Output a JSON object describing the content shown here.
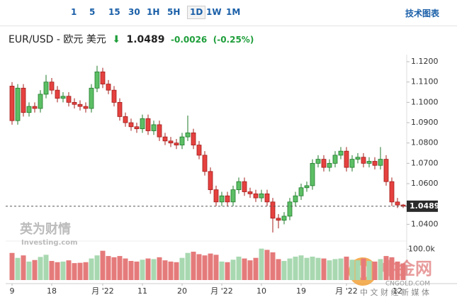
{
  "toolbar": [
    "1",
    "5",
    "15",
    "30",
    "1H",
    "5H",
    "1D",
    "1W",
    "1M"
  ],
  "toolbar_right": "技术图表",
  "header": {
    "symbol": "EUR/USD - 欧元 美元",
    "price": "1.0489",
    "change": "-0.0026",
    "change_pct": "(-0.25%)"
  },
  "watermarks": {
    "brand": "英为财情",
    "brand_sub": "Investing.com",
    "site": "中金网",
    "site_url": "CNGOLD.COM",
    "site_tag": "中 文 财 经 新 媒 体"
  },
  "chart_data": {
    "type": "candlestick",
    "categories": [
      "9",
      null,
      null,
      null,
      null,
      null,
      null,
      "18",
      null,
      null,
      null,
      null,
      null,
      null,
      null,
      null,
      "月 '22",
      null,
      null,
      null,
      null,
      null,
      null,
      "11",
      null,
      null,
      null,
      null,
      null,
      null,
      "20",
      null,
      null,
      null,
      null,
      null,
      null,
      "月 '22",
      null,
      null,
      null,
      null,
      null,
      null,
      "10",
      null,
      null,
      null,
      null,
      null,
      null,
      "19",
      null,
      null,
      null,
      null,
      null,
      null,
      null,
      "月 '22",
      null,
      null,
      null,
      null,
      null,
      null,
      null,
      null,
      "12",
      null
    ],
    "open": [
      1.108,
      1.091,
      1.107,
      1.095,
      1.098,
      1.097,
      1.104,
      1.11,
      1.106,
      1.102,
      1.103,
      1.1,
      1.099,
      1.098,
      1.097,
      1.107,
      1.115,
      1.109,
      1.106,
      1.1,
      1.093,
      1.09,
      1.088,
      1.087,
      1.092,
      1.086,
      1.089,
      1.083,
      1.081,
      1.08,
      1.079,
      1.083,
      1.085,
      1.079,
      1.074,
      1.066,
      1.057,
      1.051,
      1.054,
      1.051,
      1.057,
      1.061,
      1.056,
      1.055,
      1.053,
      1.055,
      1.051,
      1.043,
      1.042,
      1.044,
      1.051,
      1.054,
      1.058,
      1.059,
      1.07,
      1.072,
      1.068,
      1.07,
      1.074,
      1.076,
      1.068,
      1.072,
      1.073,
      1.07,
      1.071,
      1.069,
      1.072,
      1.061,
      1.051,
      1.0495
    ],
    "close": [
      1.091,
      1.107,
      1.095,
      1.098,
      1.097,
      1.104,
      1.11,
      1.106,
      1.102,
      1.103,
      1.1,
      1.099,
      1.098,
      1.097,
      1.107,
      1.115,
      1.109,
      1.106,
      1.1,
      1.093,
      1.09,
      1.088,
      1.087,
      1.092,
      1.086,
      1.089,
      1.083,
      1.081,
      1.08,
      1.079,
      1.083,
      1.085,
      1.079,
      1.074,
      1.066,
      1.057,
      1.051,
      1.054,
      1.051,
      1.057,
      1.061,
      1.056,
      1.055,
      1.053,
      1.055,
      1.051,
      1.043,
      1.042,
      1.044,
      1.051,
      1.054,
      1.058,
      1.059,
      1.07,
      1.072,
      1.068,
      1.07,
      1.074,
      1.076,
      1.068,
      1.072,
      1.073,
      1.07,
      1.071,
      1.069,
      1.072,
      1.061,
      1.051,
      1.0495,
      1.0489
    ],
    "high": [
      1.11,
      1.109,
      1.109,
      1.1,
      1.1,
      1.106,
      1.1135,
      1.112,
      1.108,
      1.105,
      1.105,
      1.102,
      1.101,
      1.1,
      1.109,
      1.118,
      1.117,
      1.111,
      1.108,
      1.102,
      1.095,
      1.092,
      1.09,
      1.094,
      1.094,
      1.091,
      1.091,
      1.085,
      1.083,
      1.082,
      1.085,
      1.0935,
      1.087,
      1.081,
      1.076,
      1.068,
      1.059,
      1.056,
      1.056,
      1.059,
      1.063,
      1.063,
      1.058,
      1.057,
      1.057,
      1.057,
      1.053,
      1.045,
      1.046,
      1.053,
      1.056,
      1.06,
      1.061,
      1.072,
      1.074,
      1.074,
      1.072,
      1.076,
      1.078,
      1.078,
      1.074,
      1.075,
      1.075,
      1.073,
      1.073,
      1.078,
      1.074,
      1.063,
      1.053,
      1.05
    ],
    "low": [
      1.089,
      1.089,
      1.093,
      1.093,
      1.095,
      1.095,
      1.102,
      1.104,
      1.1,
      1.1,
      1.098,
      1.097,
      1.096,
      1.095,
      1.095,
      1.105,
      1.107,
      1.104,
      1.098,
      1.091,
      1.088,
      1.086,
      1.085,
      1.085,
      1.084,
      1.084,
      1.081,
      1.079,
      1.078,
      1.077,
      1.077,
      1.081,
      1.077,
      1.072,
      1.064,
      1.055,
      1.049,
      1.049,
      1.049,
      1.049,
      1.055,
      1.054,
      1.053,
      1.051,
      1.051,
      1.049,
      1.036,
      1.038,
      1.04,
      1.042,
      1.049,
      1.052,
      1.056,
      1.057,
      1.068,
      1.066,
      1.066,
      1.068,
      1.072,
      1.066,
      1.066,
      1.07,
      1.068,
      1.068,
      1.067,
      1.067,
      1.059,
      1.049,
      1.048,
      1.048
    ],
    "volume": [
      88000,
      72000,
      80000,
      60000,
      65000,
      75000,
      82000,
      62000,
      58000,
      60000,
      64000,
      55000,
      56000,
      58000,
      70000,
      80000,
      95000,
      78000,
      74000,
      78000,
      70000,
      62000,
      60000,
      66000,
      70000,
      68000,
      74000,
      64000,
      60000,
      58000,
      72000,
      88000,
      92000,
      84000,
      80000,
      86000,
      82000,
      60000,
      58000,
      66000,
      76000,
      70000,
      64000,
      72000,
      102000,
      98000,
      90000,
      68000,
      62000,
      70000,
      76000,
      80000,
      72000,
      76000,
      72000,
      70000,
      64000,
      68000,
      70000,
      76000,
      66000,
      64000,
      70000,
      62000,
      60000,
      68000,
      78000,
      74000,
      60000,
      54000
    ],
    "up_color": "#5cbf65",
    "up_edge": "#1f7a2a",
    "down_color": "#e5413f",
    "down_edge": "#a31c1a",
    "vol_up_color": "#a8d8b0",
    "vol_down_color": "#e57a7a",
    "ylim": [
      1.0335,
      1.1235
    ],
    "yticks": [
      {
        "value": 1.12,
        "label": "1.1200"
      },
      {
        "value": 1.11,
        "label": "1.1100"
      },
      {
        "value": 1.1,
        "label": "1.1000"
      },
      {
        "value": 1.09,
        "label": "1.0900"
      },
      {
        "value": 1.08,
        "label": "1.0800"
      },
      {
        "value": 1.07,
        "label": "1.0700"
      },
      {
        "value": 1.06,
        "label": "1.0600"
      },
      {
        "value": 1.04,
        "label": "1.0400"
      }
    ],
    "vol_ylim": [
      0,
      115000
    ],
    "vol_yticks": [
      {
        "value": 100000,
        "label": "100.0k"
      }
    ],
    "last_price": {
      "value": 1.0489,
      "label": "1.0489"
    }
  }
}
